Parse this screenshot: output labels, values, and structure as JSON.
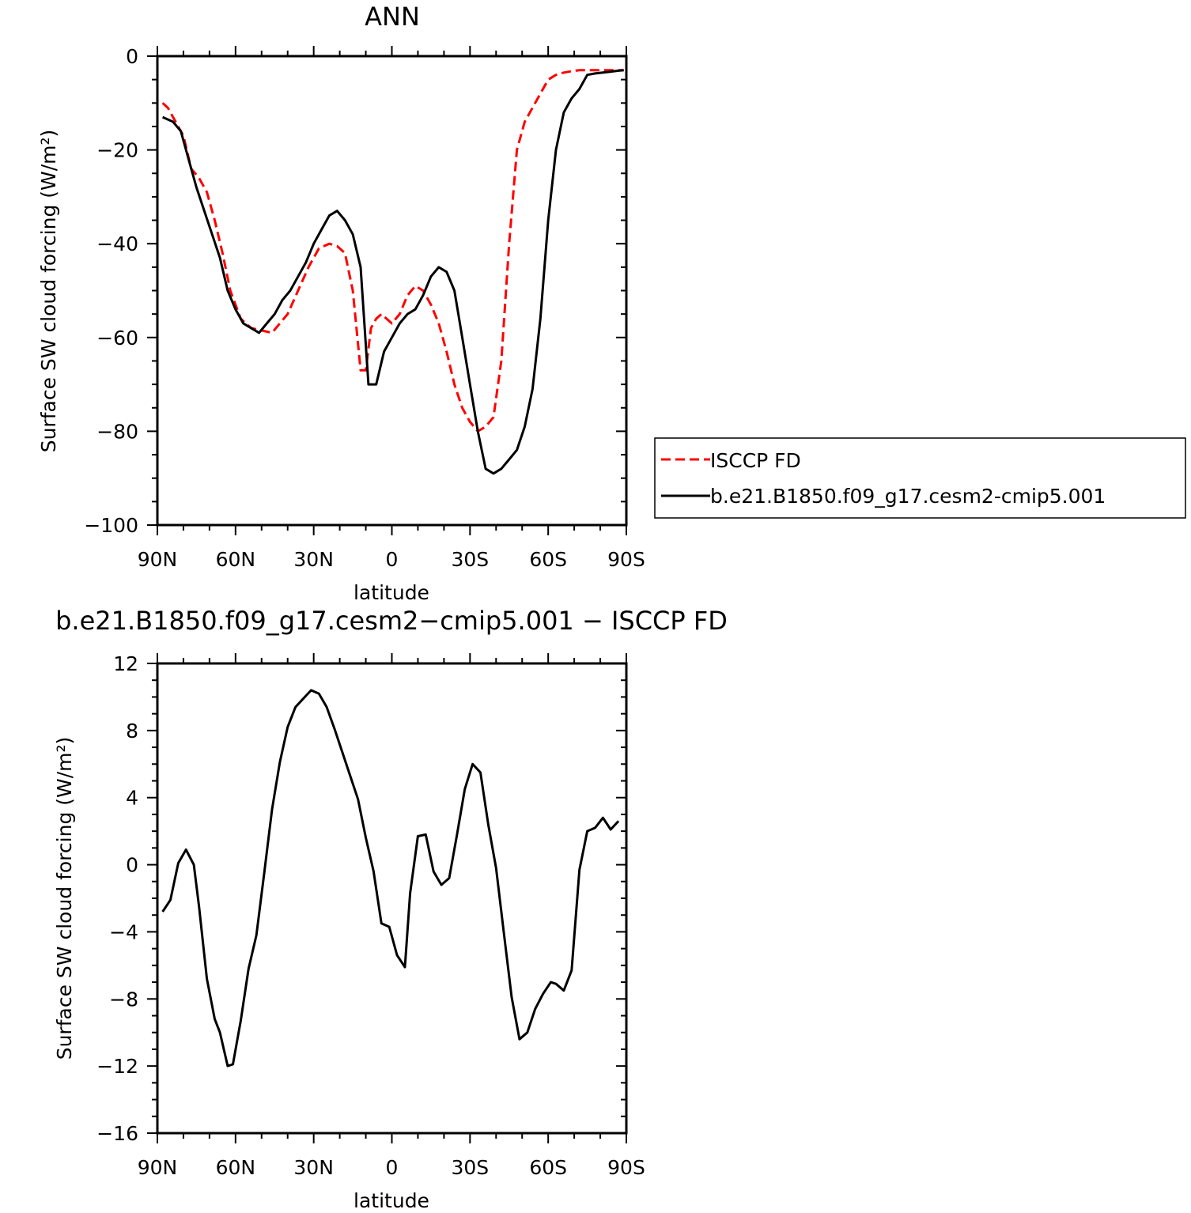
{
  "chart_data": [
    {
      "type": "line",
      "title": "ANN",
      "xlabel": "latitude",
      "ylabel": "Surface SW cloud forcing (W/m²)",
      "xlim": [
        90,
        -90
      ],
      "ylim": [
        -100,
        0
      ],
      "x_ticks": [
        90,
        60,
        30,
        0,
        -30,
        -60,
        -90
      ],
      "x_tick_labels": [
        "90N",
        "60N",
        "30N",
        "0",
        "30S",
        "60S",
        "90S"
      ],
      "y_ticks": [
        0,
        -20,
        -40,
        -60,
        -80,
        -100
      ],
      "y_tick_labels": [
        "0",
        "−20",
        "−40",
        "−60",
        "−80",
        "−100"
      ],
      "legend": "right",
      "series": [
        {
          "name": "ISCCP FD",
          "color": "#ff0000",
          "dash": "dashed",
          "x": [
            88,
            86,
            84,
            80,
            77,
            74,
            71,
            68,
            65,
            62,
            58,
            54,
            50,
            46,
            43,
            40,
            36,
            32,
            28,
            24,
            21,
            18,
            15,
            12,
            10,
            8,
            6,
            4,
            2,
            0,
            -3,
            -6,
            -9,
            -12,
            -15,
            -18,
            -21,
            -24,
            -27,
            -30,
            -33,
            -36,
            -39,
            -42,
            -45,
            -48,
            -51,
            -54,
            -57,
            -60,
            -63,
            -66,
            -69,
            -72,
            -75,
            -78,
            -81,
            -84,
            -87,
            -89
          ],
          "y": [
            -10,
            -11,
            -13,
            -17,
            -24,
            -26,
            -29,
            -35,
            -42,
            -50,
            -56,
            -58,
            -58.5,
            -59,
            -57,
            -55,
            -50,
            -45,
            -41,
            -40,
            -40.5,
            -42,
            -50,
            -67,
            -67,
            -58,
            -56,
            -55,
            -56,
            -57,
            -55,
            -51,
            -49,
            -50,
            -53,
            -57,
            -63,
            -70,
            -75,
            -78,
            -80,
            -79,
            -77,
            -65,
            -40,
            -20,
            -14,
            -11,
            -8,
            -5,
            -4,
            -3.5,
            -3.2,
            -3,
            -3,
            -3,
            -3,
            -3,
            -3,
            -3
          ]
        },
        {
          "name": "b.e21.B1850.f09_g17.cesm2-cmip5.001",
          "color": "#000000",
          "dash": "solid",
          "x": [
            88,
            84,
            81,
            78,
            75,
            72,
            69,
            66,
            63,
            60,
            57,
            54,
            51,
            48,
            45,
            42,
            39,
            36,
            33,
            30,
            27,
            24,
            21,
            18,
            15,
            12,
            9,
            6,
            3,
            0,
            -3,
            -6,
            -9,
            -12,
            -15,
            -18,
            -21,
            -24,
            -27,
            -30,
            -33,
            -36,
            -39,
            -42,
            -45,
            -48,
            -51,
            -54,
            -57,
            -60,
            -63,
            -66,
            -69,
            -72,
            -75,
            -78,
            -81,
            -84,
            -87,
            -89
          ],
          "y": [
            -13,
            -14,
            -16,
            -22,
            -28,
            -33,
            -38,
            -43,
            -50,
            -54,
            -57,
            -58,
            -59,
            -57,
            -55,
            -52,
            -50,
            -47,
            -44,
            -40,
            -37,
            -34,
            -33,
            -35,
            -38,
            -45,
            -70,
            -70,
            -63,
            -60,
            -57,
            -55,
            -54,
            -51,
            -47,
            -45,
            -46,
            -50,
            -60,
            -70,
            -80,
            -88,
            -89,
            -88,
            -86,
            -84,
            -79,
            -71,
            -56,
            -35,
            -20,
            -12,
            -9,
            -7,
            -4,
            -3.7,
            -3.5,
            -3.3,
            -3.1,
            -3
          ]
        }
      ]
    },
    {
      "type": "line",
      "title": "b.e21.B1850.f09_g17.cesm2−cmip5.001 − ISCCP FD",
      "xlabel": "latitude",
      "ylabel": "Surface SW cloud forcing (W/m²)",
      "xlim": [
        90,
        -90
      ],
      "ylim": [
        -16,
        12
      ],
      "x_ticks": [
        90,
        60,
        30,
        0,
        -30,
        -60,
        -90
      ],
      "x_tick_labels": [
        "90N",
        "60N",
        "30N",
        "0",
        "30S",
        "60S",
        "90S"
      ],
      "y_ticks": [
        12,
        8,
        4,
        0,
        -4,
        -8,
        -12,
        -16
      ],
      "y_tick_labels": [
        "12",
        "8",
        "4",
        "0",
        "−4",
        "−8",
        "−12",
        "−16"
      ],
      "series": [
        {
          "color": "#000000",
          "dash": "solid",
          "x": [
            88,
            85,
            82,
            79,
            76,
            74,
            71,
            68,
            66,
            63,
            61,
            58,
            55,
            52,
            49,
            46,
            43,
            40,
            37,
            34,
            31,
            28,
            25,
            22,
            19,
            16,
            13,
            10,
            7,
            4,
            1,
            -2,
            -5,
            -7,
            -10,
            -13,
            -16,
            -19,
            -22,
            -25,
            -28,
            -31,
            -34,
            -37,
            -40,
            -43,
            -46,
            -49,
            -52,
            -55,
            -58,
            -61,
            -63,
            -66,
            -69,
            -72,
            -75,
            -78,
            -81,
            -84,
            -87
          ],
          "y": [
            -2.8,
            -2.1,
            0.1,
            0.9,
            0,
            -2.5,
            -6.8,
            -9.2,
            -10,
            -12,
            -11.9,
            -9.3,
            -6.2,
            -4.2,
            -0.5,
            3.3,
            6.1,
            8.2,
            9.4,
            9.9,
            10.4,
            10.2,
            9.4,
            8.1,
            6.7,
            5.3,
            3.9,
            1.6,
            -0.4,
            -3.5,
            -3.7,
            -5.4,
            -6.1,
            -1.7,
            1.7,
            1.8,
            -0.4,
            -1.2,
            -0.8,
            1.8,
            4.5,
            6,
            5.5,
            2.4,
            -0.2,
            -4.1,
            -7.9,
            -10.4,
            -10,
            -8.6,
            -7.7,
            -7,
            -7.1,
            -7.5,
            -6.3,
            -0.3,
            2,
            2.2,
            2.8,
            2.1,
            2.6
          ]
        }
      ]
    }
  ]
}
